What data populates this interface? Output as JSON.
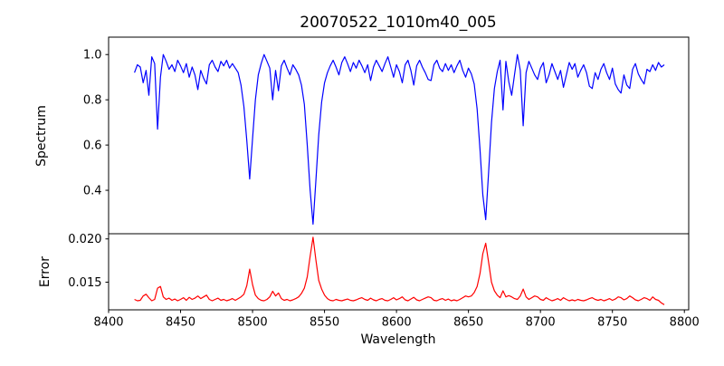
{
  "title": "20070522_1010m40_005",
  "figure": {
    "background": "#ffffff",
    "frame_color": "#000000"
  },
  "chart_data": [
    {
      "type": "line",
      "panel": "spectrum",
      "ylabel": "Spectrum",
      "line_color": "#0000ff",
      "xlim": [
        8400,
        8803
      ],
      "ylim": [
        0.208,
        1.077
      ],
      "yticks": [
        1.0,
        0.8,
        0.6,
        0.4
      ],
      "ytick_labels": [
        "1.0",
        "0.8",
        "0.6",
        "0.4"
      ],
      "grid": false,
      "legend": "none",
      "x_start": 8418,
      "x_step": 2,
      "values": [
        0.92,
        0.955,
        0.945,
        0.875,
        0.93,
        0.82,
        0.99,
        0.96,
        0.67,
        0.9,
        1.0,
        0.97,
        0.935,
        0.955,
        0.925,
        0.975,
        0.95,
        0.92,
        0.96,
        0.9,
        0.945,
        0.91,
        0.845,
        0.93,
        0.895,
        0.87,
        0.955,
        0.975,
        0.945,
        0.925,
        0.97,
        0.95,
        0.975,
        0.94,
        0.96,
        0.94,
        0.92,
        0.865,
        0.77,
        0.62,
        0.45,
        0.63,
        0.8,
        0.91,
        0.96,
        1.0,
        0.97,
        0.94,
        0.8,
        0.93,
        0.84,
        0.95,
        0.975,
        0.94,
        0.91,
        0.955,
        0.935,
        0.91,
        0.865,
        0.78,
        0.6,
        0.4,
        0.25,
        0.44,
        0.645,
        0.79,
        0.875,
        0.92,
        0.95,
        0.975,
        0.945,
        0.91,
        0.965,
        0.99,
        0.96,
        0.925,
        0.965,
        0.94,
        0.975,
        0.95,
        0.92,
        0.955,
        0.885,
        0.945,
        0.975,
        0.95,
        0.925,
        0.96,
        0.99,
        0.945,
        0.9,
        0.955,
        0.925,
        0.875,
        0.955,
        0.975,
        0.93,
        0.865,
        0.95,
        0.975,
        0.945,
        0.92,
        0.89,
        0.885,
        0.955,
        0.975,
        0.94,
        0.925,
        0.96,
        0.93,
        0.955,
        0.92,
        0.95,
        0.975,
        0.93,
        0.9,
        0.94,
        0.915,
        0.87,
        0.76,
        0.58,
        0.38,
        0.27,
        0.48,
        0.7,
        0.85,
        0.925,
        0.975,
        0.755,
        0.97,
        0.88,
        0.82,
        0.91,
        1.0,
        0.93,
        0.685,
        0.92,
        0.97,
        0.94,
        0.91,
        0.89,
        0.94,
        0.965,
        0.875,
        0.91,
        0.96,
        0.925,
        0.89,
        0.93,
        0.855,
        0.91,
        0.965,
        0.935,
        0.96,
        0.9,
        0.93,
        0.955,
        0.92,
        0.86,
        0.85,
        0.92,
        0.89,
        0.935,
        0.96,
        0.92,
        0.89,
        0.94,
        0.87,
        0.845,
        0.83,
        0.91,
        0.865,
        0.85,
        0.935,
        0.96,
        0.915,
        0.89,
        0.87,
        0.935,
        0.925,
        0.955,
        0.93,
        0.965,
        0.945,
        0.955
      ]
    },
    {
      "type": "line",
      "panel": "error",
      "ylabel": "Error",
      "xlabel": "Wavelength",
      "line_color": "#ff0000",
      "xlim": [
        8400,
        8803
      ],
      "ylim": [
        0.0118,
        0.0206
      ],
      "yticks": [
        0.02,
        0.015
      ],
      "ytick_labels": [
        "0.020",
        "0.015"
      ],
      "xticks": [
        8400,
        8450,
        8500,
        8550,
        8600,
        8650,
        8700,
        8750,
        8800
      ],
      "xtick_labels": [
        "8400",
        "8450",
        "8500",
        "8550",
        "8600",
        "8650",
        "8700",
        "8750",
        "8800"
      ],
      "grid": false,
      "legend": "none",
      "x_start": 8418,
      "x_step": 2,
      "values": [
        0.013,
        0.01285,
        0.0129,
        0.0134,
        0.0136,
        0.0132,
        0.01285,
        0.013,
        0.0143,
        0.0145,
        0.0133,
        0.013,
        0.01315,
        0.0129,
        0.01305,
        0.01285,
        0.013,
        0.0132,
        0.0129,
        0.01325,
        0.013,
        0.01315,
        0.0134,
        0.0131,
        0.0133,
        0.0135,
        0.013,
        0.01285,
        0.013,
        0.01315,
        0.0129,
        0.013,
        0.01285,
        0.01295,
        0.0131,
        0.0129,
        0.0131,
        0.0133,
        0.0136,
        0.0146,
        0.0165,
        0.0147,
        0.0135,
        0.0131,
        0.0129,
        0.01285,
        0.013,
        0.0133,
        0.01395,
        0.0134,
        0.01375,
        0.0131,
        0.0129,
        0.013,
        0.01285,
        0.01295,
        0.0131,
        0.0133,
        0.0137,
        0.0143,
        0.0156,
        0.018,
        0.0202,
        0.0176,
        0.0152,
        0.0142,
        0.0135,
        0.0131,
        0.0129,
        0.01285,
        0.013,
        0.0129,
        0.01285,
        0.01295,
        0.01305,
        0.0129,
        0.01285,
        0.01295,
        0.0131,
        0.0132,
        0.013,
        0.0129,
        0.01315,
        0.01295,
        0.01285,
        0.013,
        0.0131,
        0.0129,
        0.01285,
        0.013,
        0.0132,
        0.01295,
        0.0131,
        0.0133,
        0.01295,
        0.01285,
        0.01305,
        0.01325,
        0.01295,
        0.01285,
        0.013,
        0.01315,
        0.0133,
        0.0132,
        0.0129,
        0.01285,
        0.013,
        0.0131,
        0.0129,
        0.01305,
        0.01285,
        0.01295,
        0.01285,
        0.013,
        0.0132,
        0.0134,
        0.0133,
        0.0134,
        0.0138,
        0.0145,
        0.016,
        0.0183,
        0.0195,
        0.0173,
        0.015,
        0.014,
        0.0135,
        0.0132,
        0.014,
        0.0133,
        0.01345,
        0.0133,
        0.0131,
        0.013,
        0.0134,
        0.0142,
        0.0133,
        0.013,
        0.0132,
        0.0134,
        0.0133,
        0.013,
        0.0129,
        0.0132,
        0.013,
        0.01285,
        0.01295,
        0.0131,
        0.0129,
        0.0132,
        0.013,
        0.01285,
        0.01295,
        0.01285,
        0.013,
        0.0129,
        0.01285,
        0.01295,
        0.0131,
        0.0132,
        0.013,
        0.0129,
        0.013,
        0.01285,
        0.01295,
        0.0131,
        0.0129,
        0.01305,
        0.0133,
        0.0132,
        0.01295,
        0.0131,
        0.0134,
        0.0132,
        0.01295,
        0.01285,
        0.013,
        0.0132,
        0.0131,
        0.0129,
        0.0133,
        0.013,
        0.0129,
        0.0126,
        0.0124
      ]
    }
  ]
}
